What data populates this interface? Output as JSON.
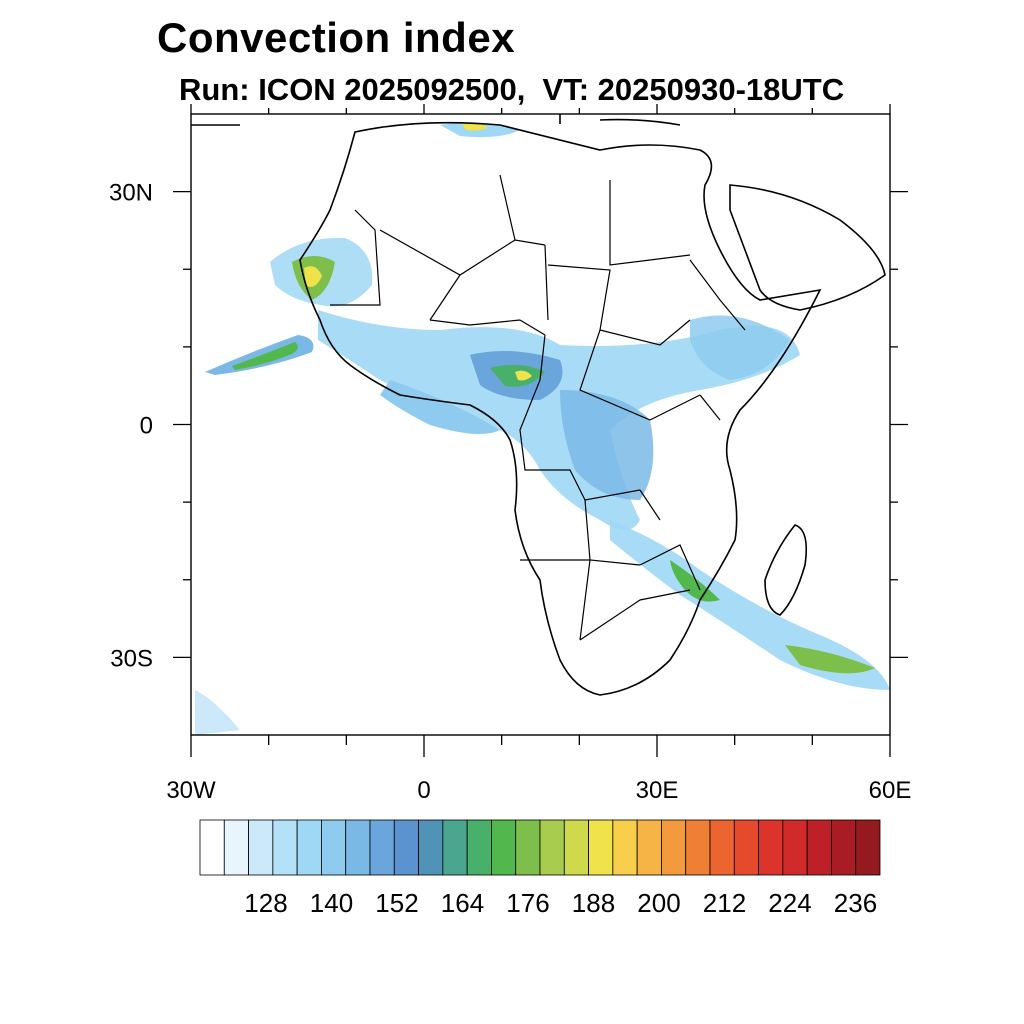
{
  "title": "Convection index",
  "subtitle": "Run: ICON 2025092500,  VT: 20250930-18UTC",
  "map": {
    "region": "Africa",
    "projection": "equirectangular",
    "lon_range": [
      -30,
      60
    ],
    "lat_range": [
      -40,
      40
    ],
    "lat_tick_labels": [
      {
        "lat": 30,
        "label": "30N"
      },
      {
        "lat": 0,
        "label": "0"
      },
      {
        "lat": -30,
        "label": "30S"
      }
    ],
    "lon_tick_labels": [
      {
        "lon": -30,
        "label": "30W"
      },
      {
        "lon": 0,
        "label": "0"
      },
      {
        "lon": 30,
        "label": "30E"
      },
      {
        "lon": 60,
        "label": "60E"
      }
    ],
    "minor_lon_ticks": [
      -20,
      -10,
      10,
      20,
      40,
      50
    ],
    "minor_lat_ticks": [
      20,
      10,
      -10,
      -20
    ]
  },
  "colorbar": {
    "colors": [
      "#ffffff",
      "#e8f5fc",
      "#cbe9f8",
      "#b3e1f7",
      "#9fd8f5",
      "#8ecbef",
      "#7ab8e6",
      "#6aa5dc",
      "#5a93cf",
      "#4f94b6",
      "#4aa68e",
      "#49b06a",
      "#52b84e",
      "#7dbf4a",
      "#a8cc4d",
      "#cfd94c",
      "#f0e24a",
      "#f8ce4a",
      "#f7b446",
      "#f49a3e",
      "#f07f36",
      "#ec6530",
      "#e54a2d",
      "#dc342b",
      "#d02a2b",
      "#bd2027",
      "#aa1c23",
      "#941a1f"
    ],
    "labels": [
      "128",
      "140",
      "152",
      "164",
      "176",
      "188",
      "200",
      "212",
      "224",
      "236"
    ]
  }
}
